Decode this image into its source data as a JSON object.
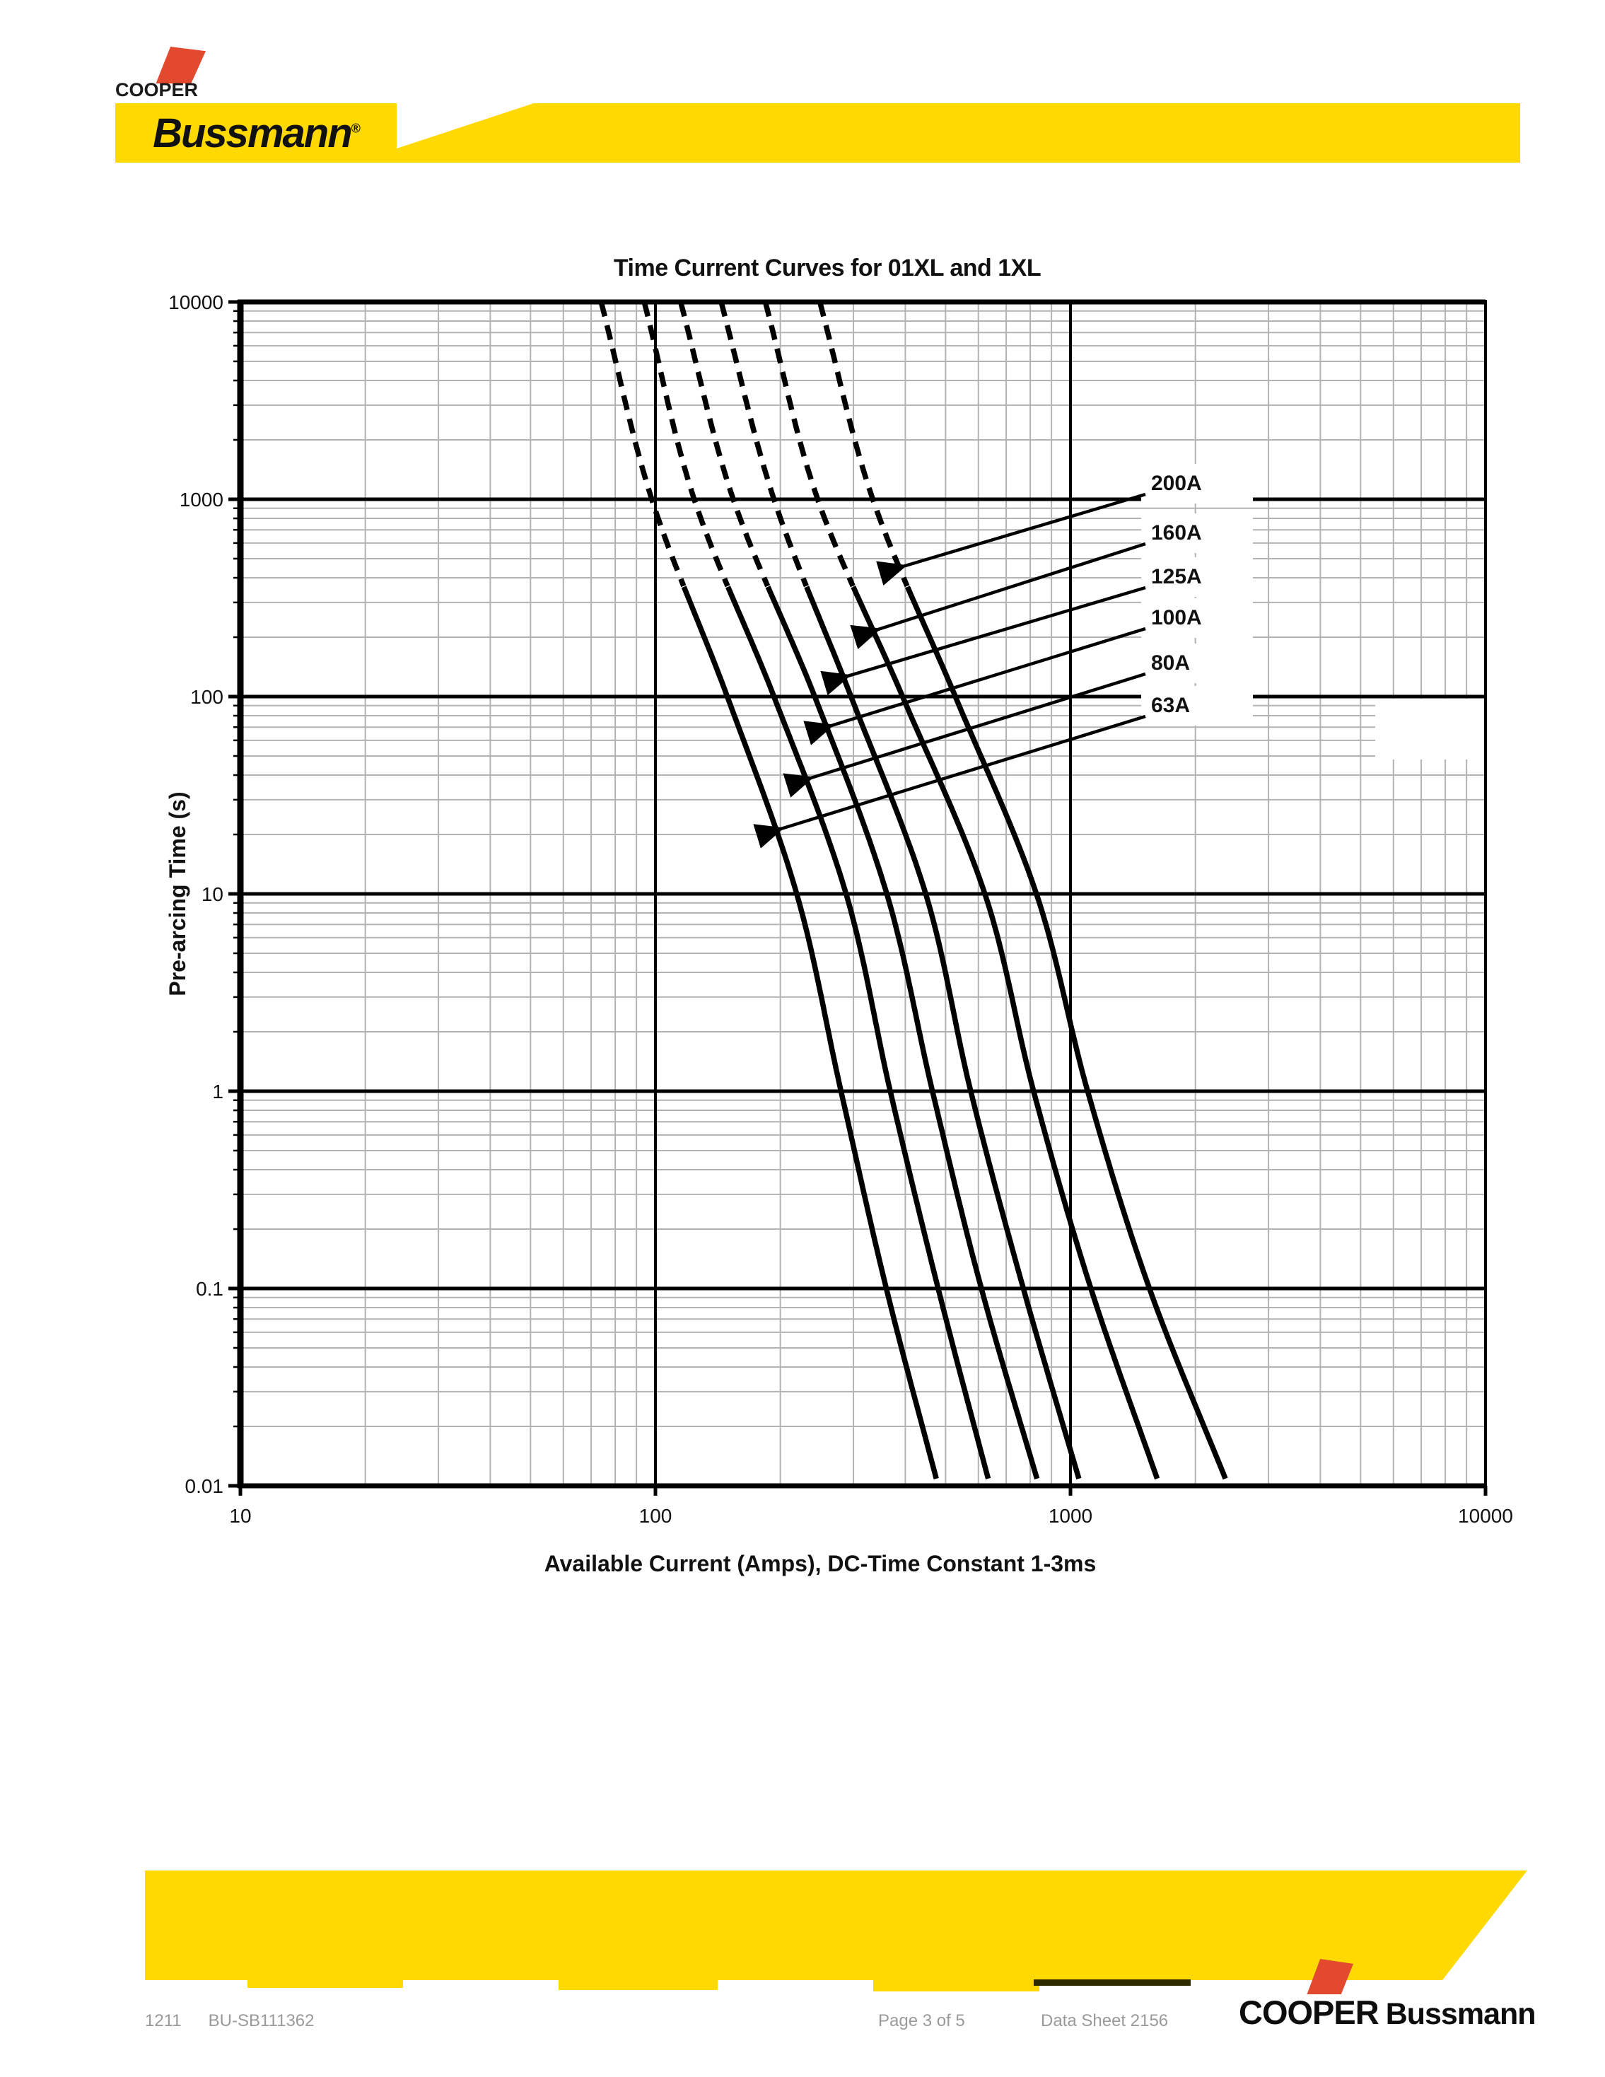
{
  "header": {
    "cooper": "COOPER",
    "bussmann": "Bussmann",
    "reg": "®"
  },
  "chart_data": {
    "type": "line",
    "title": "Time Current Curves for 01XL and 1XL",
    "xlabel": "Available Current (Amps), DC-Time Constant 1-3ms",
    "ylabel": "Pre-arcing Time (s)",
    "x_scale": "log",
    "y_scale": "log",
    "xlim": [
      10,
      10000
    ],
    "ylim": [
      0.01,
      10000
    ],
    "x_ticks": [
      "10",
      "100",
      "1000",
      "10000"
    ],
    "y_ticks": [
      "10000",
      "1000",
      "100",
      "10",
      "1",
      "0.1",
      "0.01"
    ],
    "grid": "log major+minor, both axes",
    "legend_position": "inline labels with leader arrows, right side of plot",
    "dashed_above_seconds": 360,
    "t_values_s": [
      10000,
      1000,
      100,
      10,
      1,
      0.1,
      0.01
    ],
    "series": [
      {
        "name": "63A",
        "amps": [
          74,
          98,
          149,
          219,
          280,
          360,
          480
        ],
        "arrow_t": 21
      },
      {
        "name": "80A",
        "amps": [
          94,
          124,
          193,
          288,
          368,
          480,
          640
        ],
        "arrow_t": 38
      },
      {
        "name": "100A",
        "amps": [
          115,
          154,
          242,
          361,
          465,
          610,
          840
        ],
        "arrow_t": 70
      },
      {
        "name": "125A",
        "amps": [
          144,
          193,
          296,
          448,
          575,
          770,
          1060
        ],
        "arrow_t": 125
      },
      {
        "name": "160A",
        "amps": [
          184,
          246,
          394,
          622,
          815,
          1120,
          1640
        ],
        "arrow_t": 215
      },
      {
        "name": "200A",
        "amps": [
          249,
          334,
          528,
          828,
          1100,
          1550,
          2400
        ],
        "arrow_t": 450
      }
    ],
    "label_order_top_to_bottom": [
      "200A",
      "160A",
      "125A",
      "100A",
      "80A",
      "63A"
    ]
  },
  "footer": {
    "code_left": "1211",
    "code_right": "BU-SB111362",
    "page": "Page 3 of 5",
    "sheet": "Data Sheet 2156",
    "logo_cooper": "COOPER",
    "logo_bussmann": "Bussmann"
  },
  "colors": {
    "brand_yellow": "#ffd900",
    "brand_red": "#e2492f",
    "grid_minor": "#b3b3b3",
    "grid_major": "#000000",
    "curve": "#000000"
  }
}
